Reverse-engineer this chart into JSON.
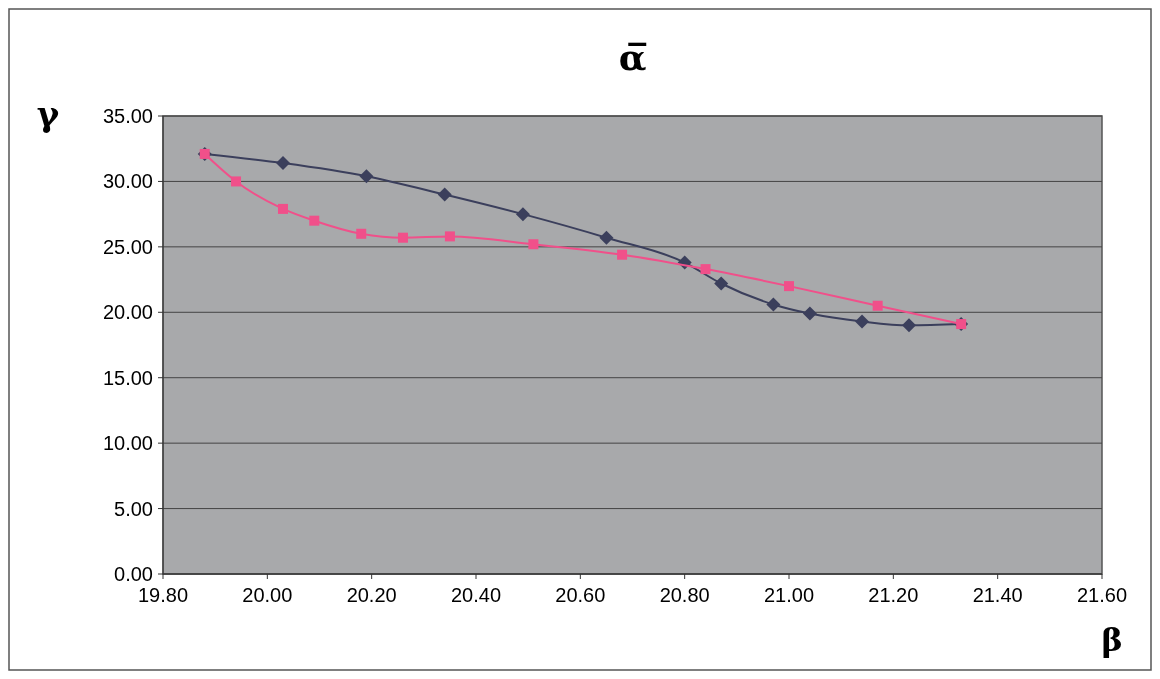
{
  "chart_data": {
    "type": "line",
    "title": "α̅",
    "xlabel": "β",
    "ylabel": "γ",
    "xlim": [
      19.8,
      21.6
    ],
    "xticks": [
      {
        "value": 19.8,
        "label": "19.80"
      },
      {
        "value": 20,
        "label": "20.00"
      },
      {
        "value": 20.2,
        "label": "20.20"
      },
      {
        "value": 20.4,
        "label": "20.40"
      },
      {
        "value": 20.6,
        "label": "20.60"
      },
      {
        "value": 20.8,
        "label": "20.80"
      },
      {
        "value": 21,
        "label": "21.00"
      },
      {
        "value": 21.2,
        "label": "21.20"
      },
      {
        "value": 21.4,
        "label": "21.40"
      },
      {
        "value": 21.6,
        "label": "21.60"
      }
    ],
    "ylim": [
      0,
      35
    ],
    "yticks": [
      {
        "value": 0,
        "label": "0.00"
      },
      {
        "value": 5,
        "label": "5.00"
      },
      {
        "value": 10,
        "label": "10.00"
      },
      {
        "value": 15,
        "label": "15.00"
      },
      {
        "value": 20,
        "label": "20.00"
      },
      {
        "value": 25,
        "label": "25.00"
      },
      {
        "value": 30,
        "label": "30.00"
      },
      {
        "value": 35,
        "label": "35.00"
      }
    ],
    "grid": "y",
    "line_style": "solid",
    "series": [
      {
        "color": "#3b3f5c",
        "marker": "diamond",
        "x": [
          19.88,
          20.03,
          20.19,
          20.34,
          20.49,
          20.65,
          20.8,
          20.87,
          20.97,
          21.04,
          21.14,
          21.23,
          21.33
        ],
        "values": [
          32.1,
          31.4,
          30.4,
          29.0,
          27.5,
          25.7,
          23.8,
          22.2,
          20.6,
          19.9,
          19.3,
          19.0,
          19.1
        ]
      },
      {
        "color": "#f0508a",
        "marker": "square",
        "x": [
          19.88,
          19.94,
          20.03,
          20.09,
          20.18,
          20.26,
          20.35,
          20.51,
          20.68,
          20.84,
          21.0,
          21.17,
          21.33
        ],
        "values": [
          32.1,
          30.0,
          27.9,
          27.0,
          26.0,
          25.7,
          25.8,
          25.2,
          24.4,
          23.3,
          22.0,
          20.5,
          19.1
        ]
      }
    ]
  }
}
